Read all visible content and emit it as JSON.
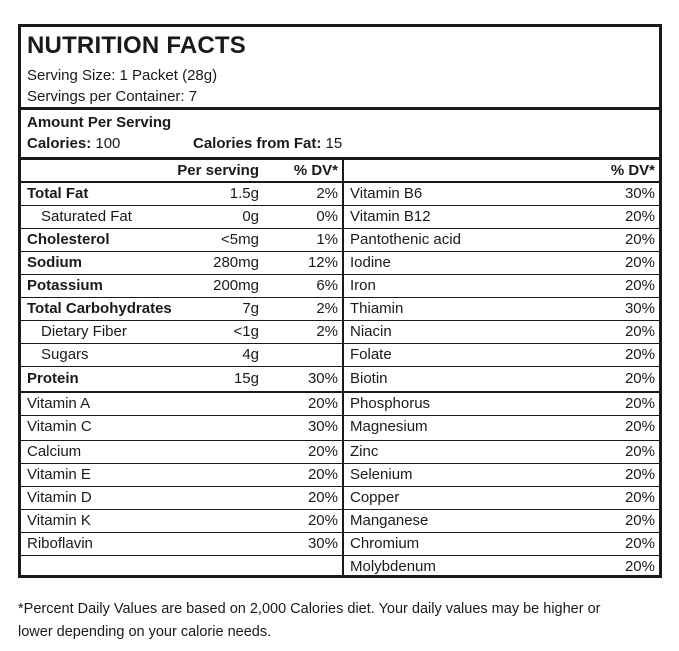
{
  "label": {
    "title": "NUTRITION FACTS",
    "serving_size": "Serving Size: 1 Packet (28g)",
    "servings_per_container": "Servings per Container: 7",
    "amount_per_serving": "Amount Per Serving",
    "calories_label": "Calories:",
    "calories_value": "100",
    "calories_fat_label": "Calories from Fat:",
    "calories_fat_value": "15"
  },
  "left_table": {
    "header_per_serving": "Per serving",
    "header_dv": "% DV*",
    "rows": [
      {
        "name": "Total Fat",
        "amount": "1.5g",
        "dv": "2%"
      },
      {
        "name": "Saturated Fat",
        "amount": "0g",
        "dv": "0%"
      },
      {
        "name": "Cholesterol",
        "amount": "<5mg",
        "dv": "1%"
      },
      {
        "name": "Sodium",
        "amount": "280mg",
        "dv": "12%"
      },
      {
        "name": "Potassium",
        "amount": "200mg",
        "dv": "6%"
      },
      {
        "name": "Total Carbohydrates",
        "amount": "7g",
        "dv": "2%"
      },
      {
        "name": "Dietary Fiber",
        "amount": "<1g",
        "dv": "2%"
      },
      {
        "name": "Sugars",
        "amount": "4g",
        "dv": ""
      },
      {
        "name": "Protein",
        "amount": "15g",
        "dv": "30%"
      }
    ],
    "vitamins": [
      {
        "name": "Vitamin A",
        "dv": "20%"
      },
      {
        "name": "Vitamin C",
        "dv": "30%"
      },
      {
        "name": "Calcium",
        "dv": "20%"
      },
      {
        "name": "Vitamin E",
        "dv": "20%"
      },
      {
        "name": "Vitamin D",
        "dv": "20%"
      },
      {
        "name": "Vitamin K",
        "dv": "20%"
      },
      {
        "name": "Riboflavin",
        "dv": "30%"
      }
    ]
  },
  "right_table": {
    "header_dv": "% DV*",
    "rows": [
      {
        "name": "Vitamin B6",
        "dv": "30%"
      },
      {
        "name": "Vitamin B12",
        "dv": "20%"
      },
      {
        "name": "Pantothenic acid",
        "dv": "20%"
      },
      {
        "name": "Iodine",
        "dv": "20%"
      },
      {
        "name": "Iron",
        "dv": "20%"
      },
      {
        "name": "Thiamin",
        "dv": "30%"
      },
      {
        "name": "Niacin",
        "dv": "20%"
      },
      {
        "name": "Folate",
        "dv": "20%"
      },
      {
        "name": "Biotin",
        "dv": "20%"
      },
      {
        "name": "Phosphorus",
        "dv": "20%"
      },
      {
        "name": "Magnesium",
        "dv": "20%"
      },
      {
        "name": "Zinc",
        "dv": "20%"
      },
      {
        "name": "Selenium",
        "dv": "20%"
      },
      {
        "name": "Copper",
        "dv": "20%"
      },
      {
        "name": "Manganese",
        "dv": "20%"
      },
      {
        "name": "Chromium",
        "dv": "20%"
      },
      {
        "name": "Molybdenum",
        "dv": "20%"
      }
    ]
  },
  "footnote": {
    "line1": "*Percent Daily Values are based on 2,000 Calories diet. Your daily values may be higher or",
    "line2": "lower depending on your calorie needs."
  }
}
